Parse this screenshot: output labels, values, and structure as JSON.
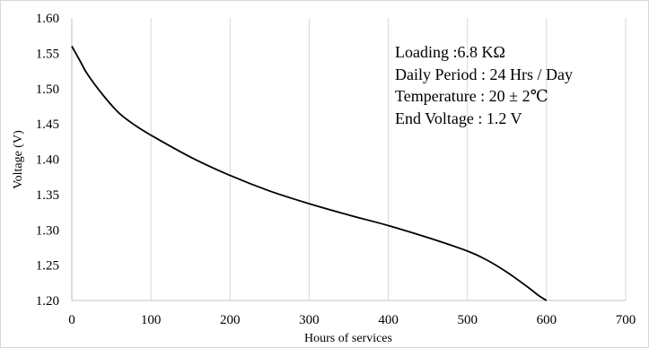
{
  "chart_data": {
    "type": "line",
    "title": "",
    "xlabel": "Hours of services",
    "ylabel": "Voltage (V)",
    "xlim": [
      0,
      700
    ],
    "ylim": [
      1.2,
      1.6
    ],
    "x_ticks": [
      "0",
      "100",
      "200",
      "300",
      "400",
      "500",
      "600",
      "700"
    ],
    "y_ticks": [
      "1.20",
      "1.25",
      "1.30",
      "1.35",
      "1.40",
      "1.45",
      "1.50",
      "1.55",
      "1.60"
    ],
    "grid": {
      "vertical": true,
      "horizontal": false
    },
    "legend": "none",
    "annotations": [
      "Loading :6.8 KΩ",
      "Daily Period : 24 Hrs / Day",
      "Temperature : 20 ± 2℃",
      "End Voltage :  1.2 V"
    ],
    "series": [
      {
        "color": "#000000",
        "x": [
          0,
          10,
          20,
          40,
          60,
          80,
          100,
          150,
          200,
          250,
          300,
          350,
          400,
          450,
          500,
          525,
          550,
          575,
          590,
          600
        ],
        "y": [
          1.56,
          1.54,
          1.52,
          1.49,
          1.465,
          1.448,
          1.434,
          1.403,
          1.377,
          1.355,
          1.337,
          1.321,
          1.306,
          1.289,
          1.27,
          1.257,
          1.24,
          1.22,
          1.207,
          1.2
        ]
      }
    ]
  }
}
